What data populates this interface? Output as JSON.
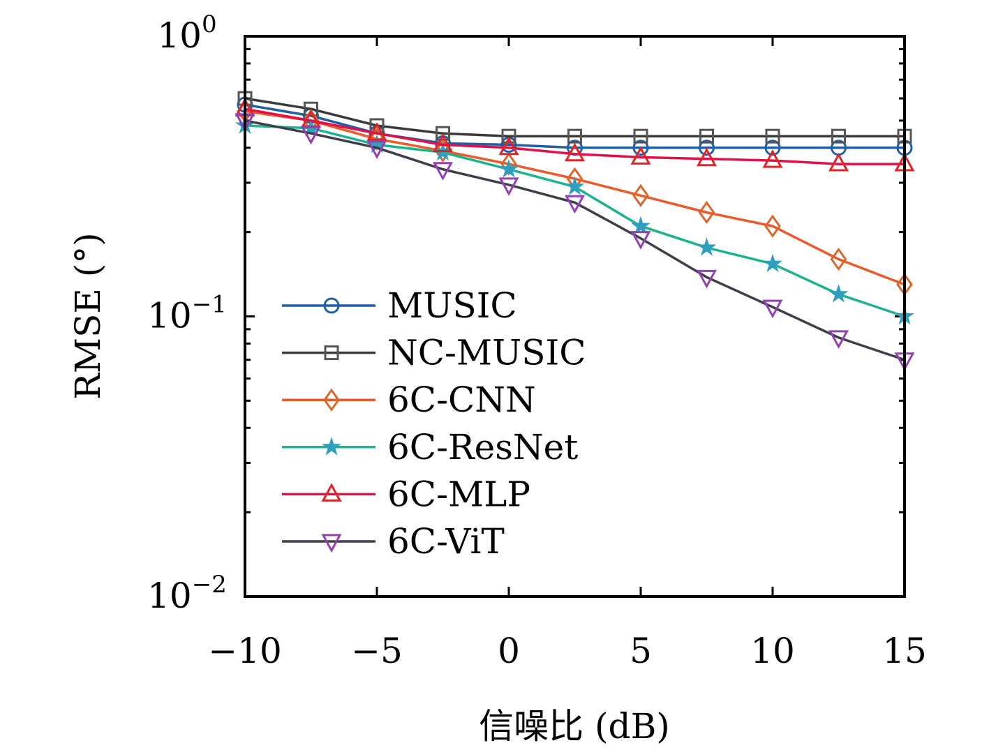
{
  "chart_data": {
    "type": "line",
    "title": "",
    "xlabel": "信噪比 (dB)",
    "ylabel": "RMSE (°)",
    "xlim": [
      -10,
      15
    ],
    "ylim": [
      0.01,
      1
    ],
    "yscale": "log",
    "grid": false,
    "legend_position": "center-left",
    "x_ticks": [
      -10,
      -5,
      0,
      5,
      10,
      15
    ],
    "x_tick_labels": [
      "−10",
      "−5",
      "0",
      "5",
      "10",
      "15"
    ],
    "y_ticks": [
      {
        "value": 1,
        "base": "10",
        "exp": "0"
      },
      {
        "value": 0.1,
        "base": "10",
        "exp": "−1"
      },
      {
        "value": 0.01,
        "base": "10",
        "exp": "−2"
      }
    ],
    "x": [
      -10,
      -7.5,
      -5,
      -2.5,
      0,
      2.5,
      5,
      7.5,
      10,
      12.5,
      15
    ],
    "series": [
      {
        "name": "MUSIC",
        "marker": "circle",
        "line_color": "#1f5fa8",
        "marker_color": "#1f5fa8",
        "values": [
          0.57,
          0.52,
          0.45,
          0.415,
          0.41,
          0.4,
          0.4,
          0.4,
          0.4,
          0.4,
          0.4
        ]
      },
      {
        "name": "NC-MUSIC",
        "marker": "square",
        "line_color": "#3a3a3a",
        "marker_color": "#555555",
        "values": [
          0.6,
          0.55,
          0.48,
          0.45,
          0.44,
          0.44,
          0.44,
          0.44,
          0.44,
          0.44,
          0.44
        ]
      },
      {
        "name": "6C-CNN",
        "marker": "diamond",
        "line_color": "#ec5a2a",
        "marker_color": "#d9662a",
        "values": [
          0.54,
          0.5,
          0.43,
          0.39,
          0.35,
          0.31,
          0.27,
          0.235,
          0.21,
          0.16,
          0.13
        ]
      },
      {
        "name": "6C-ResNet",
        "marker": "star",
        "line_color": "#1db390",
        "marker_color": "#2f9fc0",
        "values": [
          0.48,
          0.47,
          0.41,
          0.385,
          0.335,
          0.29,
          0.21,
          0.176,
          0.154,
          0.12,
          0.1
        ]
      },
      {
        "name": "6C-MLP",
        "marker": "triangle-up",
        "line_color": "#e0104a",
        "marker_color": "#e02424",
        "values": [
          0.55,
          0.5,
          0.45,
          0.41,
          0.4,
          0.38,
          0.37,
          0.365,
          0.36,
          0.35,
          0.35
        ]
      },
      {
        "name": "6C-ViT",
        "marker": "triangle-down",
        "line_color": "#3f3f4c",
        "marker_color": "#9440b4",
        "values": [
          0.5,
          0.45,
          0.4,
          0.335,
          0.295,
          0.255,
          0.19,
          0.138,
          0.108,
          0.084,
          0.07
        ]
      }
    ]
  }
}
